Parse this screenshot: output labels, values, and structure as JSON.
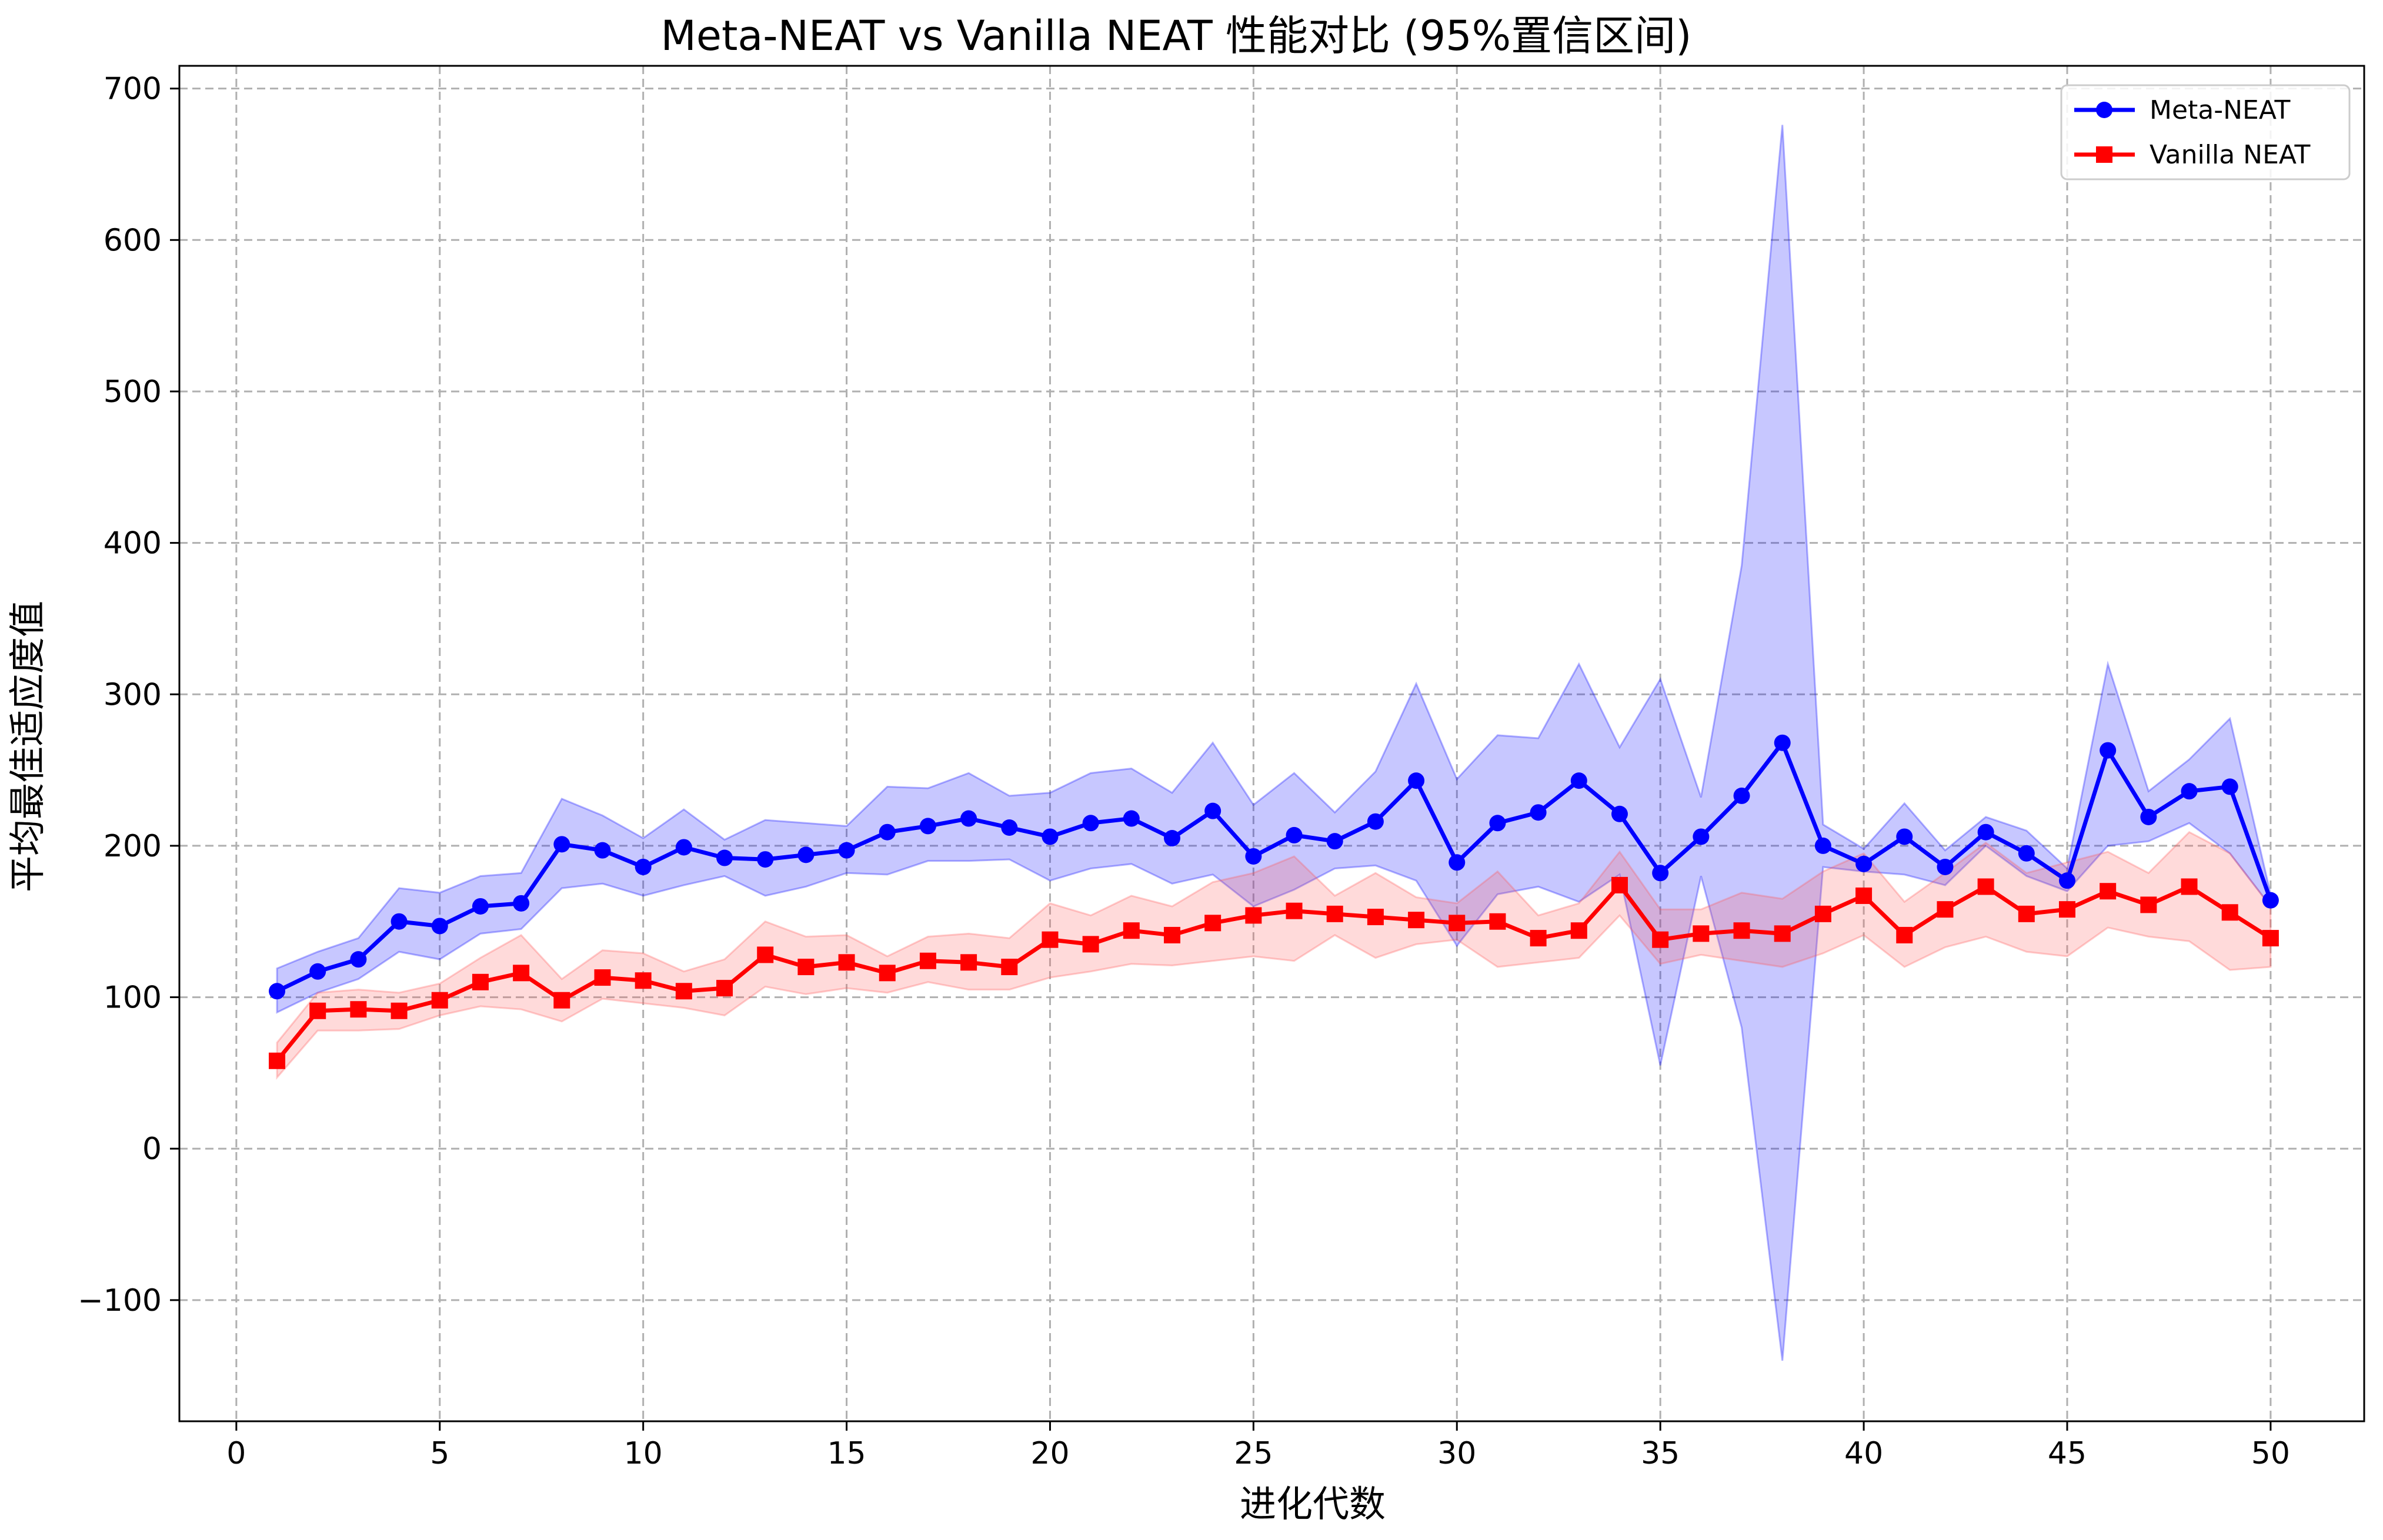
{
  "chart_data": {
    "type": "line",
    "title": "Meta-NEAT vs Vanilla NEAT 性能对比 (95%置信区间)",
    "xlabel": "进化代数",
    "ylabel": "平均最佳适应度值",
    "xlim": [
      -1.4,
      52.3
    ],
    "ylim": [
      -180,
      715
    ],
    "xticks": [
      0,
      5,
      10,
      15,
      20,
      25,
      30,
      35,
      40,
      45,
      50
    ],
    "yticks": [
      -100,
      0,
      100,
      200,
      300,
      400,
      500,
      600,
      700
    ],
    "ytick_labels": [
      "−100",
      "0",
      "100",
      "200",
      "300",
      "400",
      "500",
      "600",
      "700"
    ],
    "grid": true,
    "legend_position": "top-right",
    "x": [
      1,
      2,
      3,
      4,
      5,
      6,
      7,
      8,
      9,
      10,
      11,
      12,
      13,
      14,
      15,
      16,
      17,
      18,
      19,
      20,
      21,
      22,
      23,
      24,
      25,
      26,
      27,
      28,
      29,
      30,
      31,
      32,
      33,
      34,
      35,
      36,
      37,
      38,
      39,
      40,
      41,
      42,
      43,
      44,
      45,
      46,
      47,
      48,
      49,
      50
    ],
    "series": [
      {
        "name": "Meta-NEAT",
        "color": "#0000ff",
        "band_color": "#0000ff",
        "marker": "circle",
        "values": [
          104,
          117,
          125,
          150,
          147,
          160,
          162,
          201,
          197,
          186,
          199,
          192,
          191,
          194,
          197,
          209,
          213,
          218,
          212,
          206,
          215,
          218,
          205,
          223,
          193,
          207,
          203,
          216,
          243,
          189,
          215,
          222,
          243,
          221,
          182,
          206,
          233,
          268,
          200,
          188,
          206,
          186,
          209,
          195,
          177,
          263,
          219,
          236,
          239,
          164
        ],
        "lower": [
          90,
          103,
          112,
          130,
          125,
          142,
          145,
          172,
          175,
          167,
          174,
          180,
          167,
          173,
          182,
          181,
          190,
          190,
          191,
          177,
          185,
          188,
          175,
          181,
          160,
          171,
          185,
          187,
          177,
          134,
          168,
          173,
          163,
          181,
          55,
          180,
          80,
          -140,
          186,
          183,
          181,
          174,
          200,
          180,
          170,
          200,
          203,
          215,
          195,
          160
        ],
        "upper": [
          119,
          130,
          139,
          172,
          169,
          180,
          182,
          231,
          220,
          205,
          224,
          204,
          217,
          215,
          213,
          239,
          238,
          248,
          233,
          235,
          248,
          251,
          235,
          268,
          227,
          248,
          222,
          249,
          307,
          244,
          273,
          271,
          320,
          265,
          310,
          232,
          385,
          676,
          214,
          198,
          228,
          197,
          219,
          210,
          185,
          320,
          236,
          257,
          284,
          168
        ]
      },
      {
        "name": "Vanilla NEAT",
        "color": "#ff0000",
        "band_color": "#ff5555",
        "marker": "square",
        "values": [
          58,
          91,
          92,
          91,
          98,
          110,
          116,
          98,
          113,
          111,
          104,
          106,
          128,
          120,
          123,
          116,
          124,
          123,
          120,
          138,
          135,
          144,
          141,
          149,
          154,
          157,
          155,
          153,
          151,
          149,
          150,
          139,
          144,
          174,
          138,
          142,
          144,
          142,
          155,
          167,
          141,
          158,
          173,
          155,
          158,
          170,
          161,
          173,
          156,
          139
        ],
        "lower": [
          47,
          78,
          78,
          79,
          88,
          94,
          92,
          84,
          99,
          96,
          93,
          88,
          107,
          102,
          106,
          103,
          110,
          105,
          105,
          113,
          117,
          122,
          121,
          124,
          127,
          124,
          141,
          126,
          135,
          138,
          120,
          123,
          126,
          154,
          122,
          128,
          124,
          120,
          129,
          141,
          120,
          133,
          140,
          130,
          127,
          146,
          140,
          137,
          118,
          120
        ],
        "upper": [
          70,
          103,
          105,
          103,
          109,
          126,
          141,
          112,
          131,
          129,
          117,
          125,
          150,
          140,
          141,
          127,
          140,
          142,
          139,
          162,
          154,
          167,
          160,
          176,
          182,
          193,
          167,
          182,
          166,
          162,
          183,
          154,
          162,
          196,
          158,
          158,
          169,
          165,
          183,
          195,
          163,
          182,
          202,
          182,
          189,
          196,
          182,
          209,
          195,
          160
        ]
      }
    ]
  }
}
